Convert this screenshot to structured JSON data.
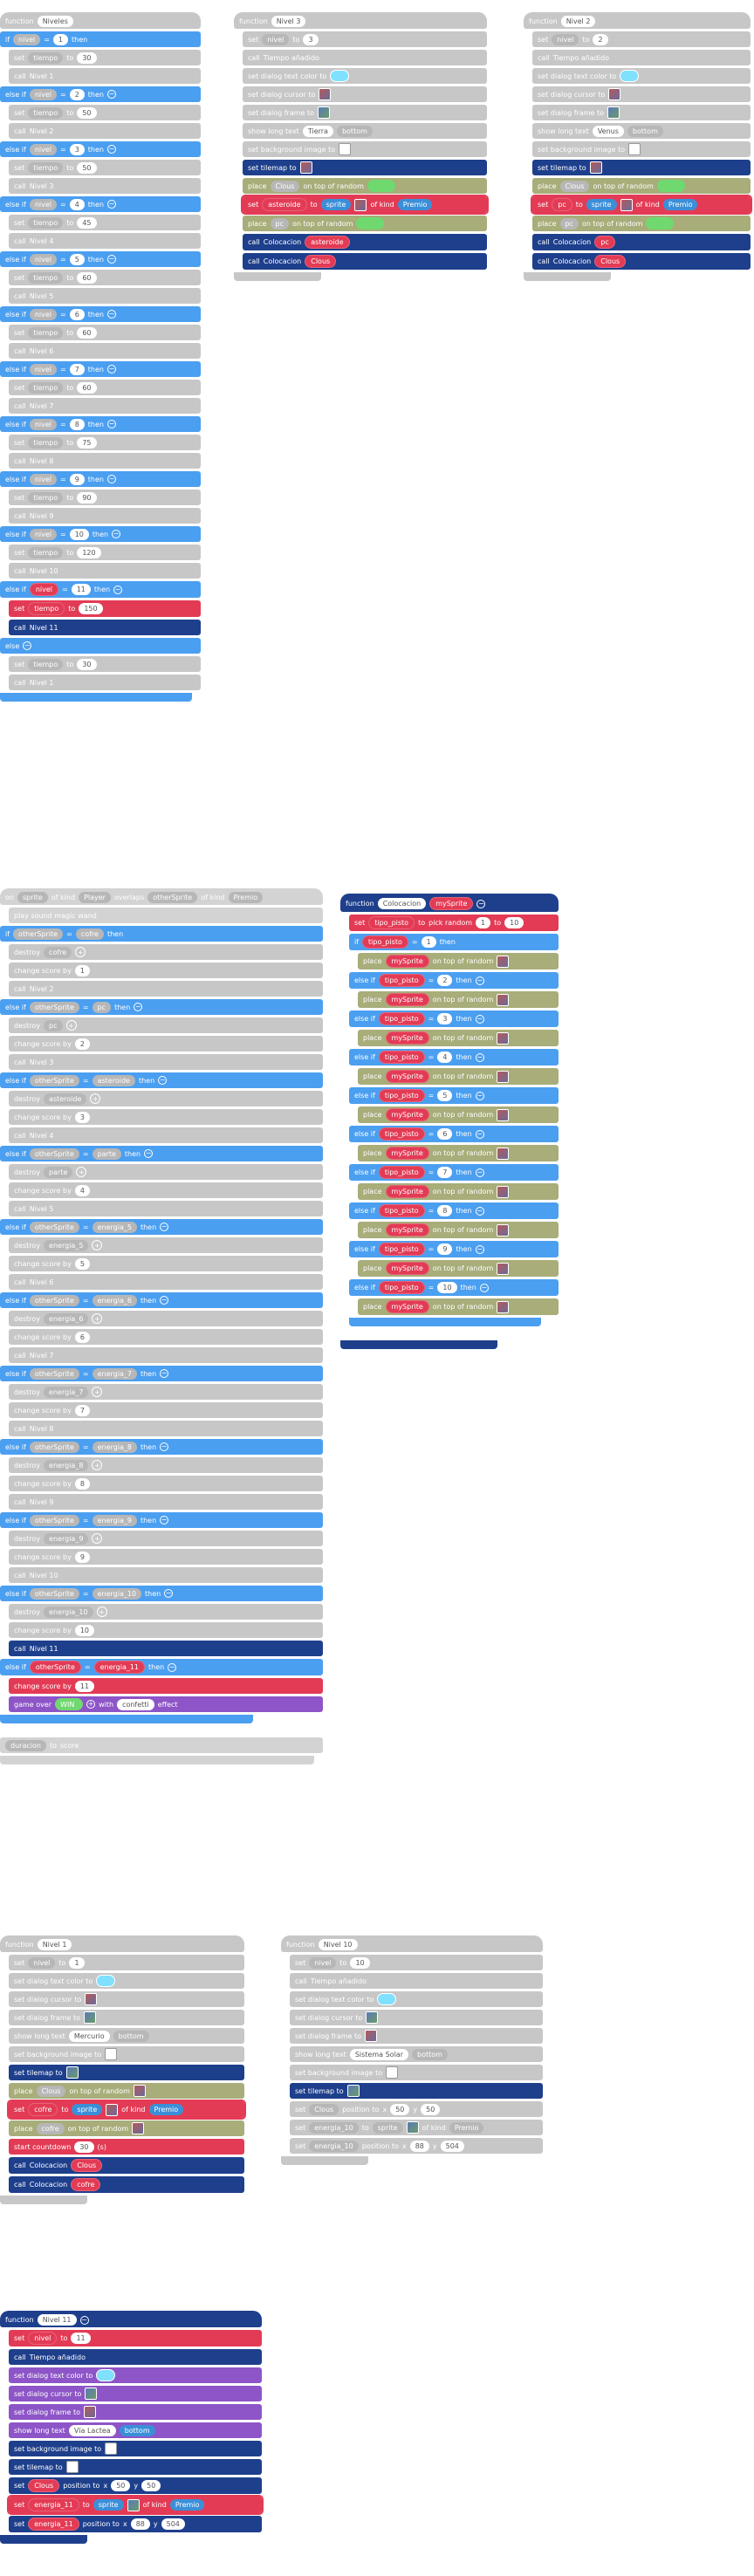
{
  "keywords": {
    "if": "if",
    "else_if": "else if",
    "else": "else",
    "then": "then",
    "function": "function",
    "set": "set",
    "to": "to",
    "call": "call",
    "place": "place",
    "on_top_random": "on top of random",
    "sprite": "sprite",
    "of_kind": "of kind",
    "destroy": "destroy",
    "change_score_by": "change score by",
    "game_over": "game over",
    "with": "with",
    "effect": "effect",
    "position_to": "position to",
    "x": "x",
    "y": "y",
    "pick_random": "pick random",
    "set_tilemap_to": "set tilemap to",
    "set_bg_image_to": "set background image to",
    "set_dialog_text_color": "set dialog text color to",
    "set_dialog_cursor": "set dialog cursor to",
    "set_dialog_frame": "set dialog frame to",
    "show_long_text": "show long text",
    "bottom": "bottom",
    "start_countdown": "start countdown",
    "s": "(s)",
    "on": "on",
    "overlaps": "overlaps",
    "play_sound": "play sound magic wand"
  },
  "niveles": {
    "header_fn": "function",
    "name": "Niveles",
    "var": "nivel",
    "op": "=",
    "tiempo": "tiempo",
    "rows": [
      {
        "n": "1",
        "t": "30",
        "call": "Nivel 1"
      },
      {
        "n": "2",
        "t": "50",
        "call": "Nivel 2"
      },
      {
        "n": "3",
        "t": "50",
        "call": "Nivel 3"
      },
      {
        "n": "4",
        "t": "45",
        "call": "Nivel 4"
      },
      {
        "n": "5",
        "t": "60",
        "call": "Nivel 5"
      },
      {
        "n": "6",
        "t": "60",
        "call": "Nivel 6"
      },
      {
        "n": "7",
        "t": "60",
        "call": "Nivel 7"
      },
      {
        "n": "8",
        "t": "75",
        "call": "Nivel 8"
      },
      {
        "n": "9",
        "t": "90",
        "call": "Nivel 9"
      },
      {
        "n": "10",
        "t": "120",
        "call": "Nivel 10"
      },
      {
        "n": "11",
        "t": "150",
        "call": "Nivel 11"
      }
    ],
    "else_t": "30",
    "else_call": "Nivel 1"
  },
  "nivel3": {
    "name": "Nivel 3",
    "nivel_val": "3",
    "call_tiempo": "Tiempo añadido",
    "long_text": "Tierra",
    "place1": "Clous",
    "set_var": "asteroide",
    "kind": "Premio",
    "place2": "pc",
    "call1": "Colocacion",
    "call1_arg": "asteroide",
    "call2": "Colocacion",
    "call2_arg": "Clous"
  },
  "nivel2": {
    "name": "Nivel 2",
    "nivel_val": "2",
    "call_tiempo": "Tiempo añadido",
    "long_text": "Venus",
    "place1": "Clous",
    "set_var": "pc",
    "kind": "Premio",
    "place2": "pc",
    "call1": "Colocacion",
    "call1_arg": "pc",
    "call2": "Colocacion",
    "call2_arg": "Clous"
  },
  "overlap": {
    "on": "on",
    "kind1": "Player",
    "var2": "otherSprite",
    "kind2": "Premio",
    "cases": [
      {
        "cmp": "cofre",
        "score": "1",
        "call": "Nivel 2"
      },
      {
        "cmp": "pc",
        "score": "2",
        "call": "Nivel 3"
      },
      {
        "cmp": "asteroide",
        "score": "3",
        "call": "Nivel 4"
      },
      {
        "cmp": "parte",
        "score": "4",
        "call": "Nivel 5"
      },
      {
        "cmp": "energia_5",
        "score": "5",
        "call": "Nivel 6"
      },
      {
        "cmp": "energia_6",
        "score": "6",
        "call": "Nivel 7"
      },
      {
        "cmp": "energia_7",
        "score": "7",
        "call": "Nivel 8"
      },
      {
        "cmp": "energia_8",
        "score": "8",
        "call": "Nivel 9"
      },
      {
        "cmp": "energia_9",
        "score": "9",
        "call": "Nivel 10"
      },
      {
        "cmp": "energia_10",
        "score": "10",
        "call": "Nivel 11"
      }
    ],
    "last_cmp": "energia_11",
    "last_score": "11",
    "game_over_val": "WIN",
    "effect": "confetti",
    "duration_var": "duracion",
    "duration_to": "score"
  },
  "colocacion": {
    "name": "Colocacion",
    "param": "mySprite",
    "var": "tipo_pisto",
    "from": "1",
    "to": "10",
    "cases": [
      "1",
      "2",
      "3",
      "4",
      "5",
      "6",
      "7",
      "8",
      "9",
      "10"
    ]
  },
  "nivel1": {
    "name": "Nivel 1",
    "nivel_val": "1",
    "long_text": "Mercurio",
    "place1": "Clous",
    "set_var": "cofre",
    "kind": "Premio",
    "place2": "cofre",
    "countdown": "30",
    "call1": "Colocacion",
    "call1_arg": "Clous",
    "call2": "Colocacion",
    "call2_arg": "cofre"
  },
  "nivel10": {
    "name": "Nivel 10",
    "nivel_val": "10",
    "call_tiempo": "Tiempo añadido",
    "long_text": "Sistema Solar",
    "clous": "Clous",
    "cx": "50",
    "cy": "50",
    "set_var": "energia_10",
    "kind": "Premio",
    "px": "88",
    "py": "504"
  },
  "nivel11": {
    "name": "Nivel 11",
    "nivel_val": "11",
    "call_tiempo": "Tiempo añadido",
    "long_text": "Vía Lactea",
    "clous": "Clous",
    "cx": "50",
    "cy": "50",
    "set_var": "energia_11",
    "kind": "Premio",
    "px": "88",
    "py": "504"
  },
  "colors": {
    "grey": "#c7c7c7",
    "blue": "#4b9ff0",
    "red": "#e33b55",
    "navy": "#1e3f8c",
    "olive": "#a8ad7a",
    "purple": "#8d55c7"
  }
}
